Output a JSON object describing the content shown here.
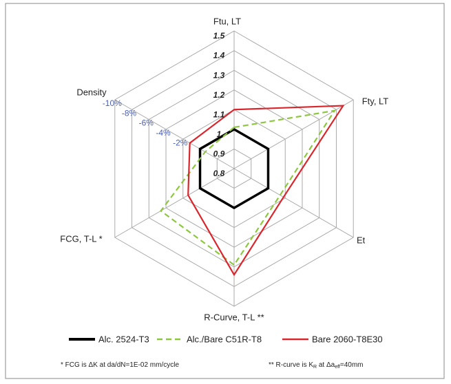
{
  "chart_data": {
    "type": "radar",
    "axes": [
      "Ftu, LT",
      "Fty, LT",
      "Et",
      "R-Curve, T-L **",
      "FCG, T-L *",
      "Density"
    ],
    "ylim": [
      0.8,
      1.5
    ],
    "yticks": [
      0.8,
      0.9,
      1.0,
      1.1,
      1.2,
      1.3,
      1.4,
      1.5
    ],
    "density_ticks": [
      "-2%",
      "-4%",
      "-6%",
      "-8%",
      "-10%"
    ],
    "series": [
      {
        "name": "Alc. 2524-T3",
        "color": "#000000",
        "dash": false,
        "values": [
          1.0,
          1.0,
          1.0,
          1.0,
          1.0,
          1.0
        ]
      },
      {
        "name": "Alc./Bare C51R-T8",
        "color": "#8dc63f",
        "dash": true,
        "values": [
          1.01,
          1.39,
          1.07,
          1.29,
          1.23,
          0.97
        ]
      },
      {
        "name": "Bare 2060-T8E30",
        "color": "#d9262c",
        "dash": false,
        "values": [
          1.1,
          1.44,
          1.09,
          1.34,
          1.07,
          1.06
        ]
      }
    ],
    "footnotes": [
      [
        "* FCG is ΔK at da/dN=1E-02 mm/cycle"
      ],
      [
        "** R-curve is K",
        "R",
        " at Δa",
        "eff",
        "=40mm"
      ]
    ]
  }
}
